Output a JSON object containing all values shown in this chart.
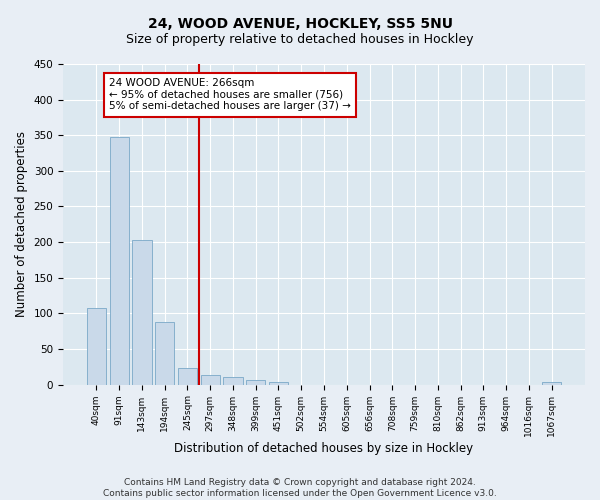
{
  "title1": "24, WOOD AVENUE, HOCKLEY, SS5 5NU",
  "title2": "Size of property relative to detached houses in Hockley",
  "xlabel": "Distribution of detached houses by size in Hockley",
  "ylabel": "Number of detached properties",
  "bar_labels": [
    "40sqm",
    "91sqm",
    "143sqm",
    "194sqm",
    "245sqm",
    "297sqm",
    "348sqm",
    "399sqm",
    "451sqm",
    "502sqm",
    "554sqm",
    "605sqm",
    "656sqm",
    "708sqm",
    "759sqm",
    "810sqm",
    "862sqm",
    "913sqm",
    "964sqm",
    "1016sqm",
    "1067sqm"
  ],
  "bar_values": [
    107,
    348,
    203,
    88,
    23,
    14,
    10,
    6,
    4,
    0,
    0,
    0,
    0,
    0,
    0,
    0,
    0,
    0,
    0,
    0,
    4
  ],
  "bar_color": "#c9d9e9",
  "bar_edgecolor": "#7aa8c8",
  "vline_x": 4.5,
  "vline_color": "#cc0000",
  "annotation_text": "24 WOOD AVENUE: 266sqm\n← 95% of detached houses are smaller (756)\n5% of semi-detached houses are larger (37) →",
  "annotation_box_edgecolor": "#cc0000",
  "ylim": [
    0,
    450
  ],
  "yticks": [
    0,
    50,
    100,
    150,
    200,
    250,
    300,
    350,
    400,
    450
  ],
  "footnote": "Contains HM Land Registry data © Crown copyright and database right 2024.\nContains public sector information licensed under the Open Government Licence v3.0.",
  "fig_bg_color": "#e8eef5",
  "plot_bg_color": "#dce8f0",
  "grid_color": "#ffffff",
  "title1_fontsize": 10,
  "title2_fontsize": 9,
  "xlabel_fontsize": 8.5,
  "ylabel_fontsize": 8.5,
  "footnote_fontsize": 6.5
}
